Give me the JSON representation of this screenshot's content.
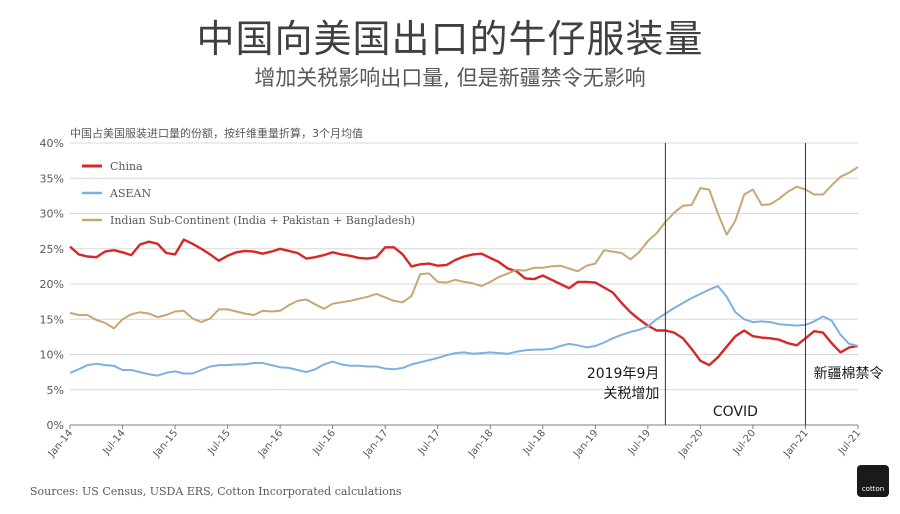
{
  "title": "中国向美国出口的牛仔服装量",
  "subtitle": "增加关税影响出口量, 但是新疆禁令无影响",
  "source": "Sources: US Census, USDA ERS, Cotton Incorporated calculations",
  "logo_text": "cotton",
  "chart_data": {
    "type": "line",
    "title": "中国占美国服装进口量的份额，按纤维重量折算，3个月均值",
    "ylim": [
      0,
      40
    ],
    "yticks": [
      "0%",
      "5%",
      "10%",
      "15%",
      "20%",
      "25%",
      "30%",
      "35%",
      "40%"
    ],
    "xticks": [
      "Jan-14",
      "Jul-14",
      "Jan-15",
      "Jul-15",
      "Jan-16",
      "Jul-16",
      "Jan-17",
      "Jul-17",
      "Jan-18",
      "Jul-18",
      "Jan-19",
      "Jul-19",
      "Jan-20",
      "Jul-20",
      "Jan-21",
      "Jul-21"
    ],
    "x_start": "Jan-14",
    "n_points": 91,
    "series": [
      {
        "name": "China",
        "color": "#d62828",
        "values": [
          25.3,
          24.2,
          23.9,
          23.8,
          24.6,
          24.8,
          24.5,
          24.1,
          25.6,
          26.0,
          25.7,
          24.4,
          24.2,
          26.3,
          25.7,
          25.0,
          24.2,
          23.3,
          24.0,
          24.5,
          24.7,
          24.6,
          24.3,
          24.6,
          25.0,
          24.7,
          24.4,
          23.6,
          23.8,
          24.1,
          24.5,
          24.2,
          24.0,
          23.7,
          23.6,
          23.8,
          25.2,
          25.2,
          24.2,
          22.5,
          22.8,
          22.9,
          22.6,
          22.7,
          23.4,
          23.9,
          24.2,
          24.3,
          23.7,
          23.1,
          22.2,
          21.8,
          20.8,
          20.7,
          21.2,
          20.6,
          20.0,
          19.4,
          20.3,
          20.3,
          20.2,
          19.5,
          18.8,
          17.3,
          16.0,
          15.0,
          14.1,
          13.4,
          13.4,
          13.1,
          12.3,
          10.8,
          9.1,
          8.5,
          9.6,
          11.1,
          12.6,
          13.4,
          12.6,
          12.4,
          12.3,
          12.1,
          11.6,
          11.3,
          12.3,
          13.3,
          13.1,
          11.6,
          10.3,
          11.0,
          11.2
        ]
      },
      {
        "name": "ASEAN",
        "color": "#7fb0e0",
        "values": [
          7.4,
          7.9,
          8.5,
          8.7,
          8.5,
          8.4,
          7.8,
          7.8,
          7.5,
          7.2,
          7.0,
          7.4,
          7.6,
          7.3,
          7.3,
          7.8,
          8.3,
          8.5,
          8.5,
          8.6,
          8.6,
          8.8,
          8.8,
          8.5,
          8.2,
          8.1,
          7.8,
          7.5,
          7.9,
          8.6,
          9.0,
          8.6,
          8.4,
          8.4,
          8.3,
          8.3,
          8.0,
          7.9,
          8.1,
          8.6,
          8.9,
          9.2,
          9.5,
          9.9,
          10.2,
          10.3,
          10.1,
          10.2,
          10.3,
          10.2,
          10.1,
          10.4,
          10.6,
          10.7,
          10.7,
          10.8,
          11.2,
          11.5,
          11.3,
          11.0,
          11.2,
          11.7,
          12.3,
          12.8,
          13.2,
          13.5,
          14.0,
          15.0,
          15.8,
          16.6,
          17.3,
          18.0,
          18.6,
          19.2,
          19.7,
          18.2,
          16.0,
          15.0,
          14.6,
          14.7,
          14.6,
          14.3,
          14.2,
          14.1,
          14.2,
          14.7,
          15.4,
          14.8,
          12.8,
          11.5,
          11.2
        ]
      },
      {
        "name": "Indian Sub-Continent (India + Pakistan + Bangladesh)",
        "color": "#c8a676",
        "values": [
          15.9,
          15.6,
          15.6,
          14.9,
          14.5,
          13.7,
          15.0,
          15.7,
          16.0,
          15.8,
          15.3,
          15.6,
          16.1,
          16.2,
          15.1,
          14.6,
          15.1,
          16.4,
          16.4,
          16.1,
          15.8,
          15.6,
          16.2,
          16.1,
          16.2,
          17.0,
          17.6,
          17.8,
          17.1,
          16.5,
          17.2,
          17.4,
          17.6,
          17.9,
          18.2,
          18.6,
          18.1,
          17.6,
          17.4,
          18.3,
          21.4,
          21.5,
          20.3,
          20.2,
          20.6,
          20.3,
          20.1,
          19.7,
          20.3,
          21.0,
          21.5,
          22.0,
          21.9,
          22.3,
          22.3,
          22.5,
          22.6,
          22.2,
          21.8,
          22.6,
          22.9,
          24.8,
          24.6,
          24.4,
          23.5,
          24.5,
          26.1,
          27.2,
          28.8,
          30.1,
          31.1,
          31.2,
          33.6,
          33.4,
          30.0,
          27.0,
          29.0,
          32.7,
          33.4,
          31.2,
          31.3,
          32.1,
          33.1,
          33.8,
          33.4,
          32.7,
          32.7,
          34.0,
          35.2,
          35.8,
          36.6
        ]
      }
    ],
    "events": [
      {
        "label_lines": [
          "2019年9月",
          "关税增加"
        ],
        "index": 68
      },
      {
        "label_lines": [
          "COVID"
        ],
        "index": 68
      },
      {
        "label_lines": [
          "新疆棉禁令"
        ],
        "index": 84
      }
    ]
  }
}
